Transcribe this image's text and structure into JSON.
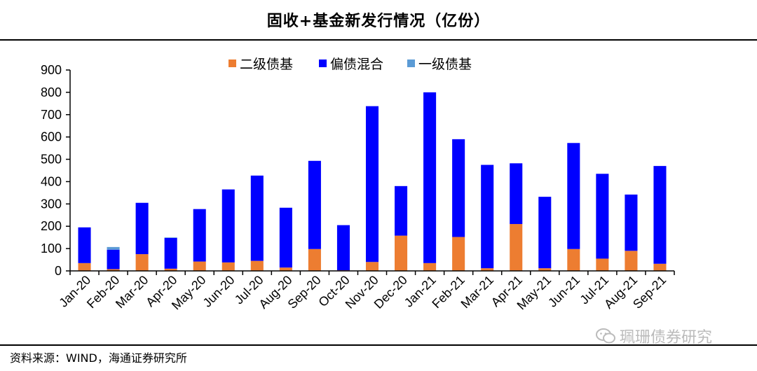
{
  "title": "固收+基金新发行情况（亿份）",
  "source": "资料来源：WIND，海通证券研究所",
  "watermark": "珮珊债券研究",
  "colors": {
    "secondary_bond": "#ED7D31",
    "hybrid_bond": "#0000FF",
    "primary_bond": "#5B9BD5"
  },
  "chart_data": {
    "type": "bar",
    "stacked": true,
    "categories": [
      "Jan-20",
      "Feb-20",
      "Mar-20",
      "Apr-20",
      "May-20",
      "Jun-20",
      "Jul-20",
      "Aug-20",
      "Sep-20",
      "Oct-20",
      "Nov-20",
      "Dec-20",
      "Jan-21",
      "Feb-21",
      "Mar-21",
      "Apr-21",
      "May-21",
      "Jun-21",
      "Jul-21",
      "Aug-21",
      "Sep-21"
    ],
    "series": [
      {
        "name": "二级债基",
        "color": "#ED7D31",
        "values": [
          35,
          8,
          75,
          10,
          42,
          38,
          45,
          15,
          98,
          3,
          40,
          158,
          35,
          152,
          12,
          210,
          12,
          98,
          55,
          90,
          32
        ]
      },
      {
        "name": "偏债混合",
        "color": "#0000FF",
        "values": [
          160,
          87,
          230,
          138,
          235,
          327,
          382,
          268,
          395,
          202,
          698,
          222,
          765,
          438,
          463,
          272,
          320,
          475,
          380,
          252,
          438
        ]
      },
      {
        "name": "一级债基",
        "color": "#5B9BD5",
        "values": [
          0,
          12,
          0,
          2,
          0,
          0,
          0,
          0,
          0,
          0,
          0,
          0,
          0,
          0,
          0,
          0,
          0,
          0,
          0,
          0,
          0
        ]
      }
    ],
    "ylim": [
      0,
      900
    ],
    "yticks": [
      0,
      100,
      200,
      300,
      400,
      500,
      600,
      700,
      800,
      900
    ],
    "legend_position": "top-center",
    "grid": false
  }
}
